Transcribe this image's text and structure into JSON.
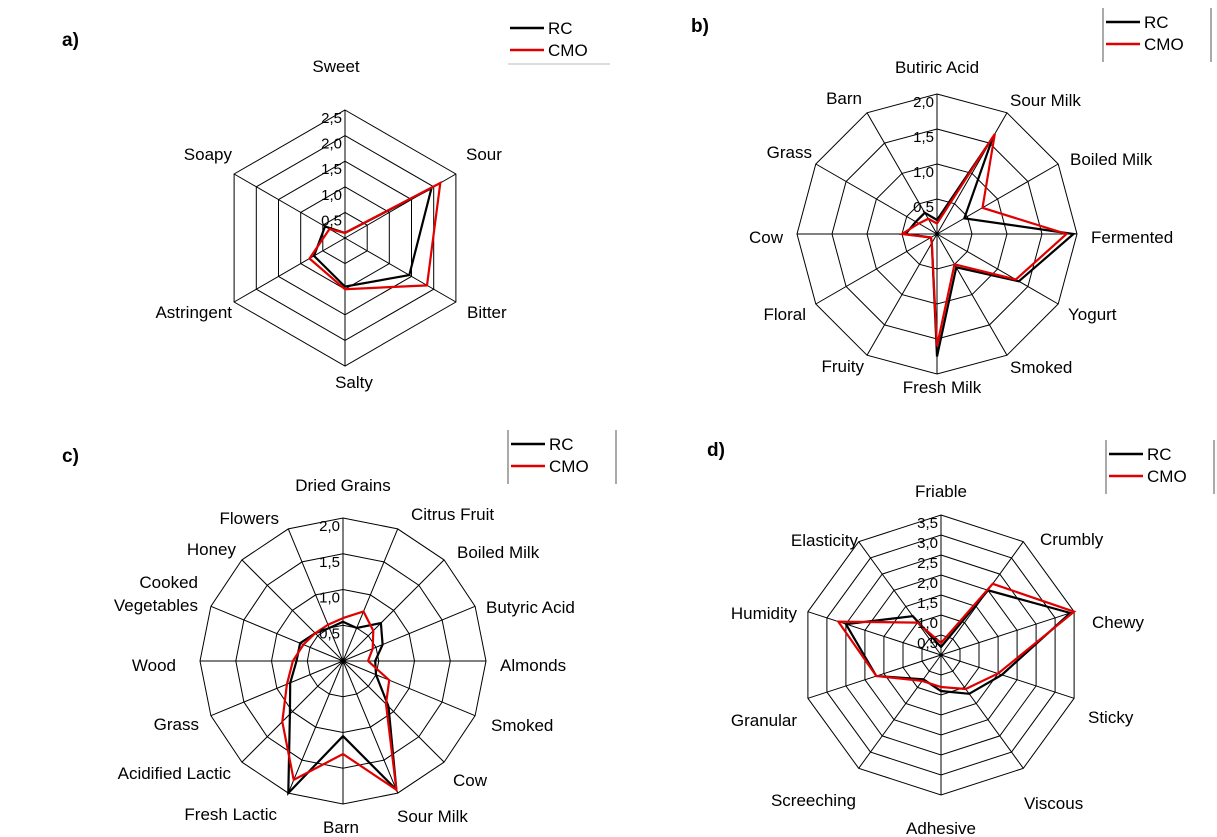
{
  "chart_data": [
    {
      "panel": "a)",
      "type": "radar",
      "axes": [
        "Sweet",
        "Sour",
        "Bitter",
        "Salty",
        "Astringent",
        "Soapy"
      ],
      "rmax": 2.5,
      "ticks": [
        "0,5",
        "1,0",
        "1,5",
        "2,0",
        "2,5"
      ],
      "legend": [
        "RC",
        "CMO"
      ],
      "series": [
        {
          "name": "RC",
          "color": "#000000",
          "values": [
            0.1,
            1.95,
            1.45,
            0.95,
            0.7,
            0.45
          ]
        },
        {
          "name": "CMO",
          "color": "#e00000",
          "values": [
            0.1,
            2.15,
            1.85,
            1.0,
            0.8,
            0.35
          ]
        }
      ]
    },
    {
      "panel": "b)",
      "type": "radar",
      "axes": [
        "Butiric Acid",
        "Sour Milk",
        "Boiled Milk",
        "Fermented",
        "Yogurt",
        "Smoked",
        "Fresh Milk",
        "Fruity",
        "Floral",
        "Cow",
        "Grass",
        "Barn"
      ],
      "rmax": 2.0,
      "ticks": [
        "0,5",
        "1,0",
        "1,5",
        "2,0"
      ],
      "legend": [
        "RC",
        "CMO"
      ],
      "series": [
        {
          "name": "RC",
          "color": "#000000",
          "values": [
            0.2,
            1.6,
            0.45,
            1.95,
            1.35,
            0.55,
            1.75,
            0.15,
            0.1,
            0.45,
            0.35,
            0.35
          ]
        },
        {
          "name": "CMO",
          "color": "#e00000",
          "values": [
            0.15,
            1.65,
            0.75,
            1.85,
            1.3,
            0.5,
            1.6,
            0.15,
            0.1,
            0.5,
            0.3,
            0.25
          ]
        }
      ]
    },
    {
      "panel": "c)",
      "type": "radar",
      "axes": [
        "Dried Grains",
        "Citrus Fruit",
        "Boiled Milk",
        "Butyric Acid",
        "Almonds",
        "Smoked",
        "Cow",
        "Sour Milk",
        "Barn",
        "Fresh Lactic",
        "Acidified Lactic",
        "Grass",
        "Wood",
        "Cooked Vegetables",
        "Honey",
        "Flowers"
      ],
      "rmax": 2.0,
      "ticks": [
        "0,5",
        "1,0",
        "1,5",
        "2,0"
      ],
      "legend": [
        "RC",
        "CMO"
      ],
      "series": [
        {
          "name": "RC",
          "color": "#000000",
          "values": [
            0.55,
            0.5,
            0.75,
            0.6,
            0.45,
            0.5,
            0.9,
            1.95,
            1.05,
            2.0,
            1.05,
            0.8,
            0.65,
            0.65,
            0.55,
            0.5
          ]
        },
        {
          "name": "CMO",
          "color": "#e00000",
          "values": [
            0.6,
            0.75,
            0.6,
            0.45,
            0.35,
            0.7,
            0.85,
            1.95,
            1.3,
            1.8,
            1.2,
            0.85,
            0.7,
            0.6,
            0.55,
            0.55
          ]
        }
      ]
    },
    {
      "panel": "d)",
      "type": "radar",
      "axes": [
        "Friable",
        "Crumbly",
        "Chewy",
        "Sticky",
        "Viscous",
        "Adhesive",
        "Screeching",
        "Granular",
        "Humidity",
        "Elasticity"
      ],
      "rmax": 3.5,
      "ticks": [
        "0,5",
        "1,0",
        "1,5",
        "2,0",
        "2,5",
        "3,0",
        "3,5"
      ],
      "legend": [
        "RC",
        "CMO"
      ],
      "series": [
        {
          "name": "RC",
          "color": "#000000",
          "values": [
            0.2,
            2.0,
            3.4,
            1.6,
            1.2,
            0.9,
            0.75,
            1.7,
            2.5,
            1.2
          ]
        },
        {
          "name": "CMO",
          "color": "#e00000",
          "values": [
            0.3,
            2.2,
            3.5,
            1.5,
            1.05,
            0.8,
            0.8,
            1.7,
            2.7,
            1.0
          ]
        }
      ]
    }
  ]
}
